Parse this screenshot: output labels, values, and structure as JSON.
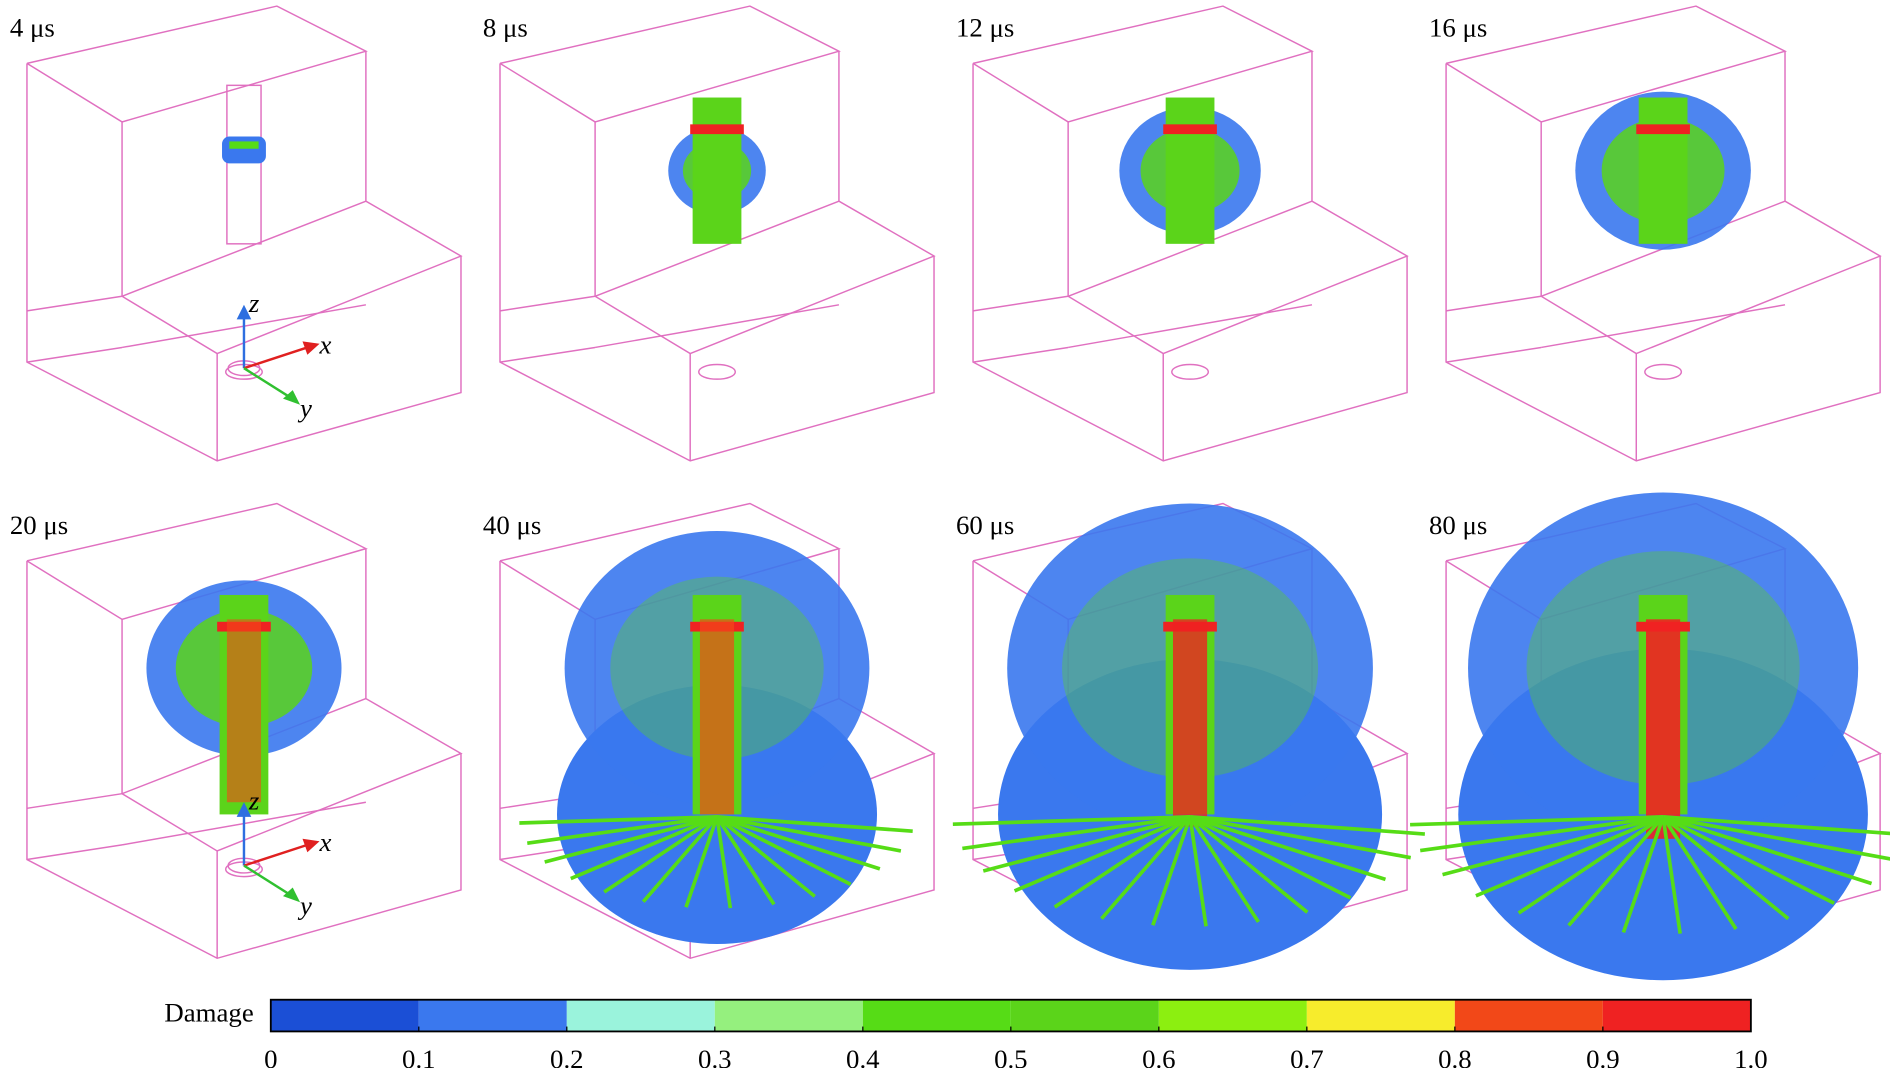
{
  "panels": [
    {
      "label": "4 μs"
    },
    {
      "label": "8 μs"
    },
    {
      "label": "12 μs"
    },
    {
      "label": "16 μs"
    },
    {
      "label": "20 μs"
    },
    {
      "label": "40 μs"
    },
    {
      "label": "60 μs"
    },
    {
      "label": "80 μs"
    }
  ],
  "axis_triads": [
    {
      "x": "x",
      "y": "y",
      "z": "z"
    },
    {
      "x": "x",
      "y": "y",
      "z": "z"
    }
  ],
  "colorbar": {
    "title": "Damage",
    "ticks": [
      0,
      0.1,
      0.2,
      0.3,
      0.4,
      0.5,
      0.6,
      0.7,
      0.8,
      0.9,
      {
        "value": 1,
        "label": "1.0"
      }
    ],
    "colors": [
      "#1b4fd6",
      "#3a78ee",
      "#9af3dc",
      "#95f07e",
      "#56dc16",
      "#5bd41a",
      "#8cef10",
      "#f7ec2c",
      "#f24818",
      "#ef2222"
    ]
  }
}
